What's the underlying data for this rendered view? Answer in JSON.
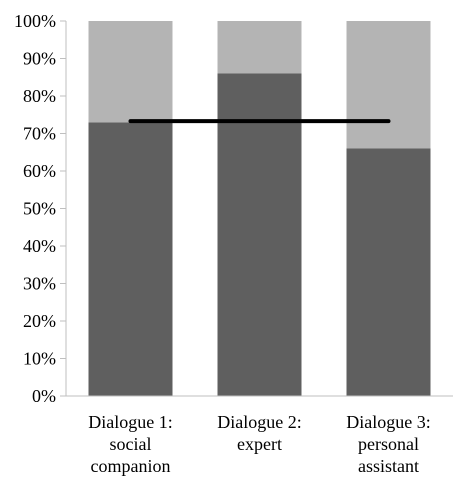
{
  "chart_data": {
    "type": "bar",
    "stacked": true,
    "percent": true,
    "categories": [
      [
        "Dialogue 1:",
        "social",
        "companion"
      ],
      [
        "Dialogue 2:",
        "expert"
      ],
      [
        "Dialogue 3:",
        "personal",
        "assistant"
      ]
    ],
    "series": [
      {
        "values": [
          73,
          86,
          66
        ],
        "color": "#5f5f5f"
      },
      {
        "values": [
          27,
          14,
          34
        ],
        "color": "#b4b4b4"
      }
    ],
    "reference_line": {
      "value": 73.3,
      "color": "#000000"
    },
    "y_ticks": [
      "0%",
      "10%",
      "20%",
      "30%",
      "40%",
      "50%",
      "60%",
      "70%",
      "80%",
      "90%",
      "100%"
    ],
    "ylim": [
      0,
      100
    ],
    "grid": false,
    "legend": "none"
  }
}
